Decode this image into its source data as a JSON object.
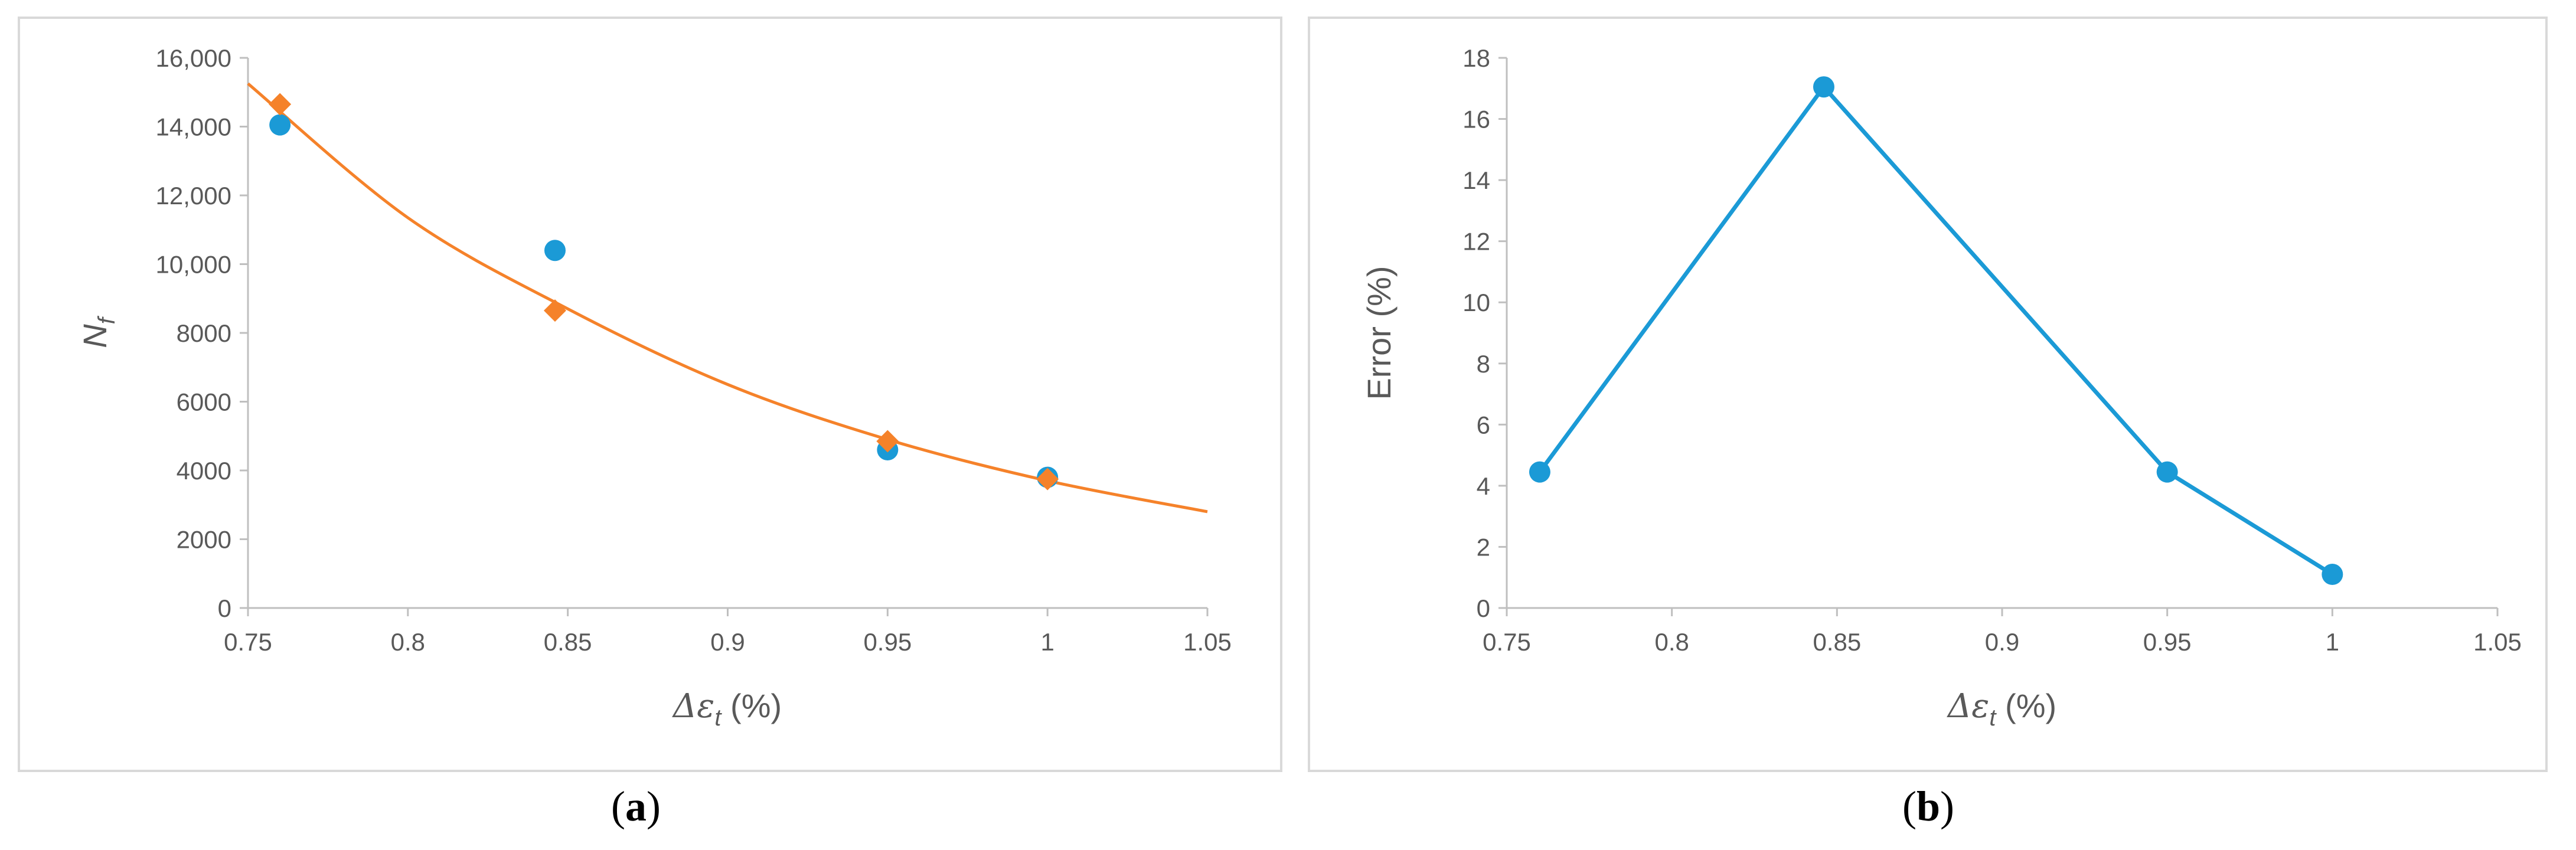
{
  "chart_data": [
    {
      "type": "scatter",
      "panel_label": "a",
      "xlabel_symbol": "Δε",
      "xlabel_sub": "t",
      "xlabel_unit": " (%)",
      "ylabel_symbol": "N",
      "ylabel_sub": "f",
      "xlim": [
        0.75,
        1.05
      ],
      "ylim": [
        0,
        16000
      ],
      "x_ticks": [
        "0.75",
        "0.8",
        "0.85",
        "0.9",
        "0.95",
        "1",
        "1.05"
      ],
      "y_ticks": [
        "0",
        "2000",
        "4000",
        "6000",
        "8000",
        "10,000",
        "12,000",
        "14,000",
        "16,000"
      ],
      "series": [
        {
          "marker": "circle",
          "color": "#1b9ad6",
          "points": [
            [
              0.76,
              14050
            ],
            [
              0.846,
              10400
            ],
            [
              0.95,
              4600
            ],
            [
              1.0,
              3800
            ]
          ]
        },
        {
          "marker": "diamond",
          "color": "#f5822a",
          "points": [
            [
              0.76,
              14650
            ],
            [
              0.846,
              8650
            ],
            [
              0.95,
              4850
            ],
            [
              1.0,
              3750
            ]
          ]
        }
      ],
      "fit_curve": {
        "color": "#f5822a",
        "points": [
          [
            0.75,
            15250
          ],
          [
            0.8,
            11350
          ],
          [
            0.85,
            8700
          ],
          [
            0.9,
            6500
          ],
          [
            0.95,
            4900
          ],
          [
            1.0,
            3700
          ],
          [
            1.05,
            2800
          ]
        ]
      },
      "grid": false,
      "legend": "none"
    },
    {
      "type": "line",
      "panel_label": "b",
      "xlabel_symbol": "Δε",
      "xlabel_sub": "t",
      "xlabel_unit": " (%)",
      "ylabel": "Error (%)",
      "xlim": [
        0.75,
        1.05
      ],
      "ylim": [
        0,
        18
      ],
      "x_ticks": [
        "0.75",
        "0.8",
        "0.85",
        "0.9",
        "0.95",
        "1",
        "1.05"
      ],
      "y_ticks": [
        "0",
        "2",
        "4",
        "6",
        "8",
        "10",
        "12",
        "14",
        "16",
        "18"
      ],
      "series": [
        {
          "marker": "circle",
          "color": "#1b9ad6",
          "points": [
            [
              0.76,
              4.45
            ],
            [
              0.846,
              17.05
            ],
            [
              0.95,
              4.45
            ],
            [
              1.0,
              1.1
            ]
          ]
        }
      ],
      "grid": false,
      "legend": "none"
    }
  ]
}
